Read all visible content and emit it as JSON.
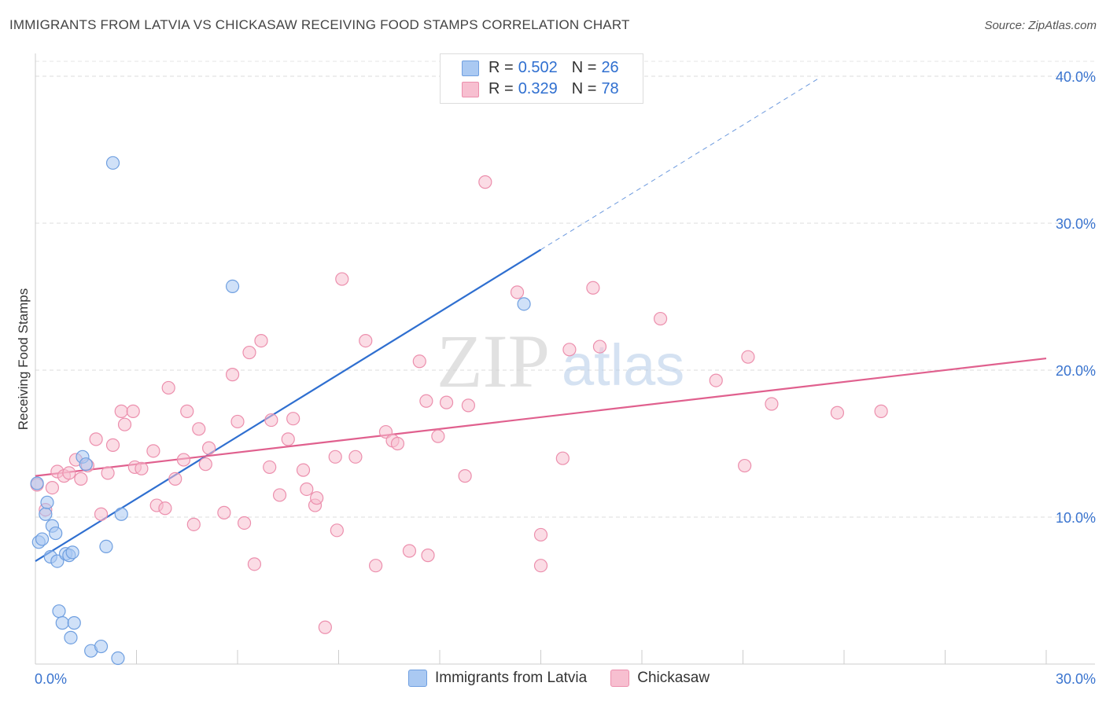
{
  "header": {
    "title": "IMMIGRANTS FROM LATVIA VS CHICKASAW RECEIVING FOOD STAMPS CORRELATION CHART",
    "source": "Source: ZipAtlas.com"
  },
  "watermark": {
    "zip": "ZIP",
    "atlas": "atlas"
  },
  "legend_top": {
    "rows": [
      {
        "r_label": "R =",
        "r_value": "0.502",
        "n_label": "N =",
        "n_value": "26",
        "color": "#aac9f2"
      },
      {
        "r_label": "R =",
        "r_value": "0.329",
        "n_label": "N =",
        "n_value": "78",
        "color": "#f7bfd0"
      }
    ]
  },
  "legend_bottom": {
    "items": [
      {
        "label": "Immigrants from Latvia",
        "color": "#aac9f2"
      },
      {
        "label": "Chickasaw",
        "color": "#f7bfd0"
      }
    ]
  },
  "chart_data": {
    "type": "scatter",
    "xlabel": "",
    "ylabel": "Receiving Food Stamps",
    "xlim": [
      0,
      30
    ],
    "ylim": [
      0,
      40
    ],
    "x_tick_labels": [
      "0.0%",
      "30.0%"
    ],
    "y_tick_labels": [
      "10.0%",
      "20.0%",
      "30.0%",
      "40.0%"
    ],
    "y_ticks": [
      10,
      20,
      30,
      40
    ],
    "grid": true,
    "series": [
      {
        "name": "Immigrants from Latvia",
        "color": "#2f6fd0",
        "fill": "#aac9f2",
        "trend": {
          "x0": 0,
          "y0": 7.0,
          "x1": 15,
          "y1": 28.2,
          "dash_to_x": 23.3
        },
        "points": [
          [
            0.1,
            8.3
          ],
          [
            0.2,
            8.5
          ],
          [
            0.3,
            10.2
          ],
          [
            0.35,
            11.0
          ],
          [
            0.45,
            7.3
          ],
          [
            0.5,
            9.4
          ],
          [
            0.6,
            8.9
          ],
          [
            0.65,
            7.0
          ],
          [
            0.7,
            3.6
          ],
          [
            0.8,
            2.8
          ],
          [
            0.9,
            7.5
          ],
          [
            1.0,
            7.4
          ],
          [
            1.05,
            1.8
          ],
          [
            1.1,
            7.6
          ],
          [
            1.15,
            2.8
          ],
          [
            1.4,
            14.1
          ],
          [
            1.5,
            13.6
          ],
          [
            1.65,
            0.9
          ],
          [
            1.95,
            1.2
          ],
          [
            2.1,
            8.0
          ],
          [
            2.3,
            34.1
          ],
          [
            2.45,
            0.4
          ],
          [
            2.55,
            10.2
          ],
          [
            5.85,
            25.7
          ],
          [
            14.5,
            24.5
          ],
          [
            0.05,
            12.3
          ]
        ]
      },
      {
        "name": "Chickasaw",
        "color": "#e0608e",
        "fill": "#f7bfd0",
        "trend": {
          "x0": 0,
          "y0": 12.8,
          "x1": 30,
          "y1": 20.8
        },
        "points": [
          [
            0.05,
            12.2
          ],
          [
            0.3,
            10.5
          ],
          [
            0.5,
            12.0
          ],
          [
            0.65,
            13.1
          ],
          [
            0.85,
            12.8
          ],
          [
            1.0,
            13.0
          ],
          [
            1.2,
            13.9
          ],
          [
            1.35,
            12.6
          ],
          [
            1.55,
            13.5
          ],
          [
            1.8,
            15.3
          ],
          [
            1.95,
            10.2
          ],
          [
            2.15,
            13.0
          ],
          [
            2.3,
            14.9
          ],
          [
            2.55,
            17.2
          ],
          [
            2.65,
            16.3
          ],
          [
            2.9,
            17.2
          ],
          [
            2.95,
            13.4
          ],
          [
            3.15,
            13.3
          ],
          [
            3.5,
            14.5
          ],
          [
            3.6,
            10.8
          ],
          [
            3.85,
            10.6
          ],
          [
            3.95,
            18.8
          ],
          [
            4.15,
            12.6
          ],
          [
            4.4,
            13.9
          ],
          [
            4.5,
            17.2
          ],
          [
            4.7,
            9.5
          ],
          [
            4.85,
            16.0
          ],
          [
            5.05,
            13.6
          ],
          [
            5.15,
            14.7
          ],
          [
            5.6,
            10.3
          ],
          [
            5.85,
            19.7
          ],
          [
            6.0,
            16.5
          ],
          [
            6.2,
            9.6
          ],
          [
            6.35,
            21.2
          ],
          [
            6.5,
            6.8
          ],
          [
            6.7,
            22.0
          ],
          [
            6.95,
            13.4
          ],
          [
            7.0,
            16.6
          ],
          [
            7.25,
            11.5
          ],
          [
            7.5,
            15.3
          ],
          [
            7.65,
            16.7
          ],
          [
            7.95,
            13.2
          ],
          [
            8.05,
            11.9
          ],
          [
            8.3,
            10.8
          ],
          [
            8.35,
            11.3
          ],
          [
            8.6,
            2.5
          ],
          [
            8.9,
            14.1
          ],
          [
            8.95,
            9.1
          ],
          [
            9.1,
            26.2
          ],
          [
            9.5,
            14.1
          ],
          [
            9.8,
            22.0
          ],
          [
            10.1,
            6.7
          ],
          [
            10.4,
            15.8
          ],
          [
            10.6,
            15.2
          ],
          [
            10.75,
            15.0
          ],
          [
            11.1,
            7.7
          ],
          [
            11.4,
            20.6
          ],
          [
            11.6,
            17.9
          ],
          [
            11.65,
            7.4
          ],
          [
            11.95,
            15.5
          ],
          [
            12.2,
            17.8
          ],
          [
            12.75,
            12.8
          ],
          [
            12.85,
            17.6
          ],
          [
            13.35,
            32.8
          ],
          [
            14.3,
            25.3
          ],
          [
            15.0,
            8.8
          ],
          [
            15.0,
            6.7
          ],
          [
            15.65,
            14.0
          ],
          [
            15.85,
            21.4
          ],
          [
            16.55,
            25.6
          ],
          [
            16.75,
            21.6
          ],
          [
            18.55,
            23.5
          ],
          [
            20.2,
            19.3
          ],
          [
            21.05,
            13.5
          ],
          [
            21.15,
            20.9
          ],
          [
            21.85,
            17.7
          ],
          [
            23.8,
            17.1
          ],
          [
            25.1,
            17.2
          ]
        ]
      }
    ]
  }
}
